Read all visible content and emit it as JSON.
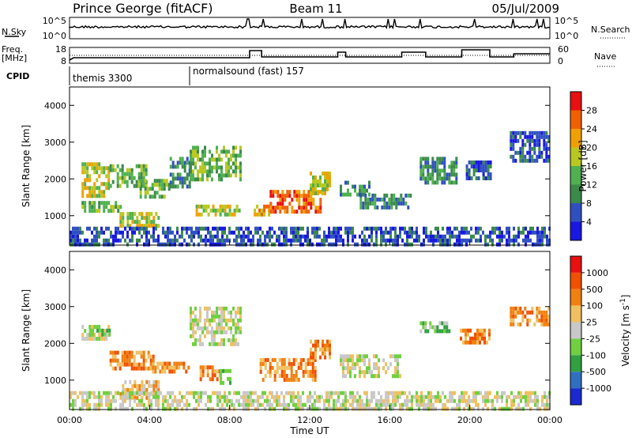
{
  "header": {
    "station": "Prince George (fitACF)",
    "beam": "Beam 11",
    "date": "05/Jul/2009"
  },
  "top_panels": {
    "nsky": {
      "left_label": "N.Sky",
      "right_label": "N.Search",
      "left_ticks": [
        "10^5",
        "10^0"
      ],
      "right_ticks": [
        "10^5",
        "10^0"
      ]
    },
    "freq": {
      "left_label_1": "Freq.",
      "left_label_2": "[MHz]",
      "right_label": "Nave",
      "left_ticks": [
        "18",
        "8"
      ],
      "right_ticks": [
        "60",
        "0"
      ]
    },
    "cpid": {
      "label": "CPID",
      "segments": [
        {
          "name": "themis 3300",
          "start_hour": 0
        },
        {
          "name": "normalsound (fast) 157",
          "start_hour": 6
        }
      ]
    }
  },
  "chart_data": [
    {
      "type": "heatmap",
      "name": "power",
      "ylabel": "Slant Range [km]",
      "xlim": [
        0,
        24
      ],
      "ylim": [
        200,
        4500
      ],
      "yticks": [
        1000,
        2000,
        3000,
        4000
      ],
      "colorbar": {
        "label": "Power [dB]",
        "ticks": [
          "4",
          "8",
          "12",
          "16",
          "20",
          "24",
          "28"
        ],
        "colors": [
          "#1818e0",
          "#3050c0",
          "#3a8a4a",
          "#50b050",
          "#b8c820",
          "#f0a000",
          "#f06000",
          "#e81010"
        ]
      },
      "regions": [
        {
          "t0": 0.6,
          "t1": 2.0,
          "r0": 1550,
          "r1": 2450,
          "level": 4
        },
        {
          "t0": 2.0,
          "t1": 3.8,
          "r0": 1800,
          "r1": 2400,
          "level": 3
        },
        {
          "t0": 0.6,
          "t1": 2.5,
          "r0": 1100,
          "r1": 1400,
          "level": 3
        },
        {
          "t0": 2.5,
          "t1": 4.5,
          "r0": 700,
          "r1": 1100,
          "level": 4
        },
        {
          "t0": 3.5,
          "t1": 5.0,
          "r0": 1500,
          "r1": 2000,
          "level": 3
        },
        {
          "t0": 5.0,
          "t1": 6.0,
          "r0": 1800,
          "r1": 2600,
          "level": 2
        },
        {
          "t0": 6.0,
          "t1": 8.5,
          "r0": 2000,
          "r1": 2900,
          "level": 3
        },
        {
          "t0": 6.3,
          "t1": 8.5,
          "r0": 1000,
          "r1": 1300,
          "level": 4
        },
        {
          "t0": 9.2,
          "t1": 10.0,
          "r0": 1000,
          "r1": 1300,
          "level": 5
        },
        {
          "t0": 10.0,
          "t1": 12.5,
          "r0": 1100,
          "r1": 1700,
          "level": 6
        },
        {
          "t0": 12.0,
          "t1": 13.0,
          "r0": 1600,
          "r1": 2200,
          "level": 4
        },
        {
          "t0": 13.5,
          "t1": 15.0,
          "r0": 1600,
          "r1": 1950,
          "level": 2
        },
        {
          "t0": 14.5,
          "t1": 17.0,
          "r0": 1200,
          "r1": 1600,
          "level": 2
        },
        {
          "t0": 17.5,
          "t1": 19.3,
          "r0": 1900,
          "r1": 2600,
          "level": 2
        },
        {
          "t0": 19.8,
          "t1": 21.0,
          "r0": 2000,
          "r1": 2500,
          "level": 1
        },
        {
          "t0": 22.0,
          "t1": 24.0,
          "r0": 2500,
          "r1": 3300,
          "level": 1
        },
        {
          "t0": 0.0,
          "t1": 24.0,
          "r0": 200,
          "r1": 700,
          "level": 1
        }
      ]
    },
    {
      "type": "heatmap",
      "name": "velocity",
      "ylabel": "Slant Range [km]",
      "xlabel": "Time UT",
      "xlim": [
        0,
        24
      ],
      "ylim": [
        200,
        4500
      ],
      "yticks": [
        1000,
        2000,
        3000,
        4000
      ],
      "xticks": [
        "00:00",
        "04:00",
        "08:00",
        "12:00",
        "16:00",
        "20:00",
        "00:00"
      ],
      "colorbar": {
        "label": "Velocity [m s-1]",
        "ticks": [
          "1000",
          "500",
          "100",
          "25",
          "-25",
          "-100",
          "-500",
          "-1000"
        ],
        "colors": [
          "#1a2ad0",
          "#3070c0",
          "#30a040",
          "#70d040",
          "#c8c8c8",
          "#f0c060",
          "#f08010",
          "#f05000",
          "#e81010"
        ]
      },
      "regions": [
        {
          "t0": 0.6,
          "t1": 2.0,
          "r0": 2100,
          "r1": 2500,
          "level": 4
        },
        {
          "t0": 1.0,
          "t1": 2.0,
          "r0": 2200,
          "r1": 2400,
          "level": 3
        },
        {
          "t0": 2.0,
          "t1": 4.2,
          "r0": 1300,
          "r1": 1800,
          "level": 6
        },
        {
          "t0": 2.5,
          "t1": 4.5,
          "r0": 500,
          "r1": 1000,
          "level": 5
        },
        {
          "t0": 4.0,
          "t1": 6.0,
          "r0": 1200,
          "r1": 1500,
          "level": 6
        },
        {
          "t0": 6.0,
          "t1": 8.5,
          "r0": 2000,
          "r1": 3000,
          "level": 4
        },
        {
          "t0": 6.5,
          "t1": 7.5,
          "r0": 1000,
          "r1": 1400,
          "level": 6
        },
        {
          "t0": 7.5,
          "t1": 8.0,
          "r0": 900,
          "r1": 1300,
          "level": 3
        },
        {
          "t0": 9.5,
          "t1": 12.3,
          "r0": 1000,
          "r1": 1600,
          "level": 6
        },
        {
          "t0": 12.0,
          "t1": 13.0,
          "r0": 1600,
          "r1": 2100,
          "level": 6
        },
        {
          "t0": 13.5,
          "t1": 16.5,
          "r0": 1100,
          "r1": 1700,
          "level": 4
        },
        {
          "t0": 17.5,
          "t1": 19.0,
          "r0": 2300,
          "r1": 2600,
          "level": 3
        },
        {
          "t0": 19.5,
          "t1": 21.0,
          "r0": 2000,
          "r1": 2400,
          "level": 6
        },
        {
          "t0": 22.0,
          "t1": 24.0,
          "r0": 2500,
          "r1": 3000,
          "level": 6
        },
        {
          "t0": 0.0,
          "t1": 24.0,
          "r0": 200,
          "r1": 700,
          "level": 4
        }
      ]
    }
  ]
}
